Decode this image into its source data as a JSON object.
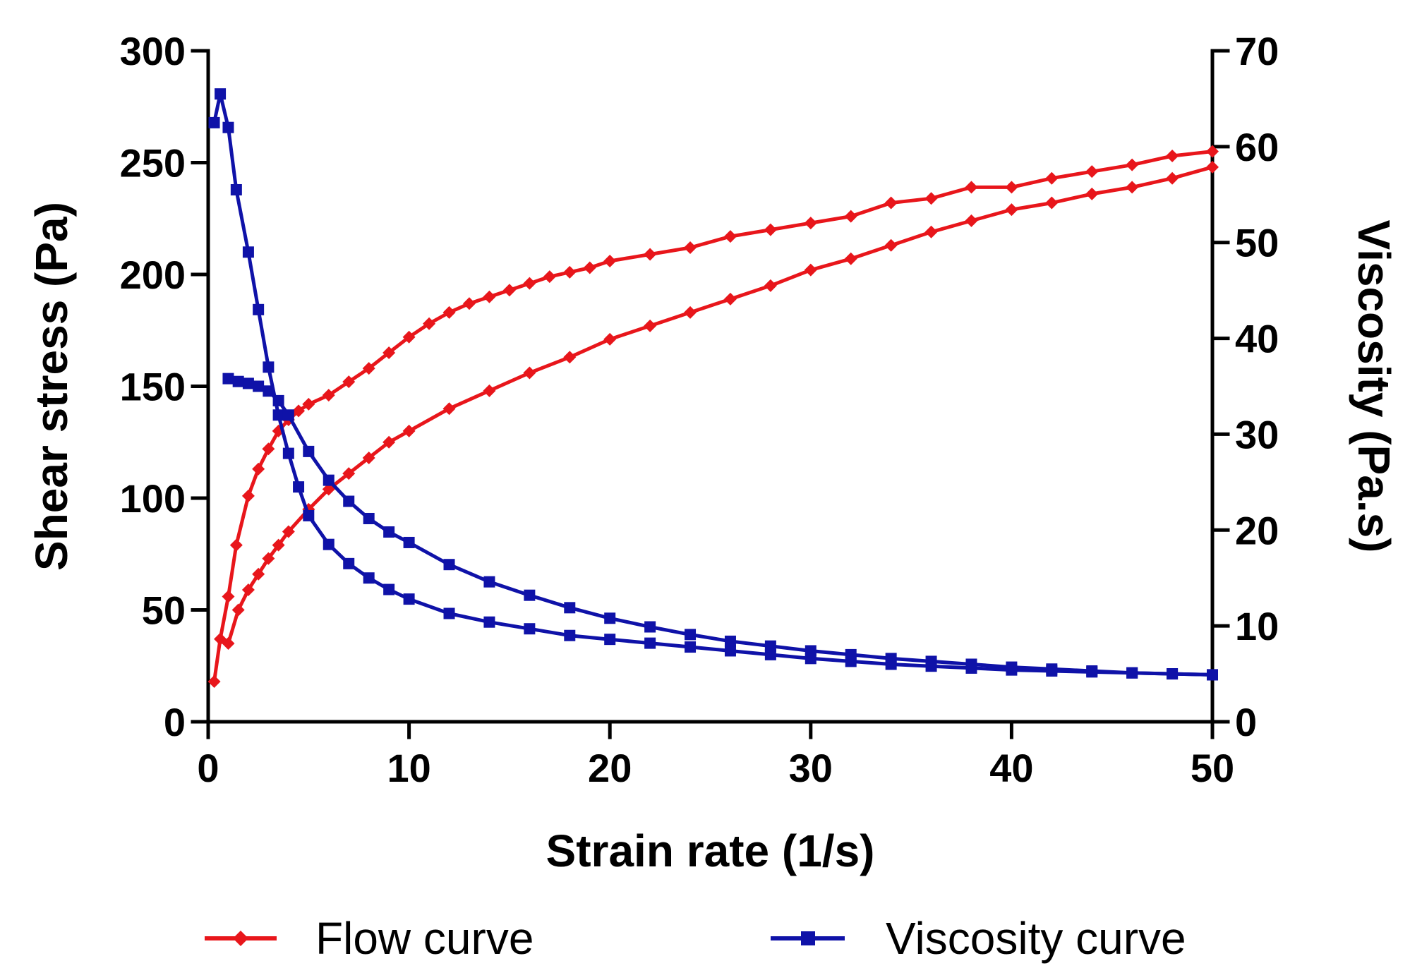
{
  "chart_data": {
    "type": "line",
    "xlabel": "Strain rate (1/s)",
    "ylabel": "Shear stress (Pa)",
    "y2label": "Viscosity (Pa.s)",
    "xlim": [
      0,
      50
    ],
    "ylim": [
      0,
      300
    ],
    "y2lim": [
      0,
      70
    ],
    "xticks": [
      "0",
      "10",
      "20",
      "30",
      "40",
      "50"
    ],
    "yticks": [
      "0",
      "50",
      "100",
      "150",
      "200",
      "250",
      "300"
    ],
    "y2ticks": [
      "0",
      "10",
      "20",
      "30",
      "40",
      "50",
      "60",
      "70"
    ],
    "grid": false,
    "legend_position": "bottom",
    "series": [
      {
        "name": "Flow curve",
        "axis": "left",
        "color": "#e8161b",
        "marker": "diamond",
        "branches": [
          {
            "label": "up",
            "x": [
              0.3,
              0.6,
              1.0,
              1.4,
              2.0,
              2.5,
              3.0,
              3.5,
              4.0,
              4.5,
              5.0,
              6.0,
              7.0,
              8.0,
              9.0,
              10.0,
              11.0,
              12.0,
              13.0,
              14.0,
              15.0,
              16.0,
              17.0,
              18.0,
              19.0,
              20.0,
              22.0,
              24.0,
              26.0,
              28.0,
              30.0,
              32.0,
              34.0,
              36.0,
              38.0,
              40.0,
              42.0,
              44.0,
              46.0,
              48.0,
              50.0
            ],
            "y": [
              18,
              37,
              56,
              79,
              101,
              113,
              122,
              130,
              135,
              139,
              142,
              146,
              152,
              158,
              165,
              172,
              178,
              183,
              187,
              190,
              193,
              196,
              199,
              201,
              203,
              206,
              209,
              212,
              217,
              220,
              223,
              226,
              232,
              234,
              239,
              239,
              243,
              246,
              249,
              253,
              255
            ]
          },
          {
            "label": "down",
            "x": [
              50.0,
              48.0,
              46.0,
              44.0,
              42.0,
              40.0,
              38.0,
              36.0,
              34.0,
              32.0,
              30.0,
              28.0,
              26.0,
              24.0,
              22.0,
              20.0,
              18.0,
              16.0,
              14.0,
              12.0,
              10.0,
              9.0,
              8.0,
              7.0,
              6.0,
              5.0,
              4.0,
              3.5,
              3.0,
              2.5,
              2.0,
              1.5,
              1.0
            ],
            "y": [
              248,
              243,
              239,
              236,
              232,
              229,
              224,
              219,
              213,
              207,
              202,
              195,
              189,
              183,
              177,
              171,
              163,
              156,
              148,
              140,
              130,
              125,
              118,
              111,
              104,
              95,
              85,
              79,
              73,
              66,
              59,
              50,
              35
            ]
          }
        ]
      },
      {
        "name": "Viscosity curve",
        "axis": "right",
        "color": "#0f12a8",
        "marker": "square",
        "branches": [
          {
            "label": "up",
            "x": [
              0.3,
              0.6,
              1.0,
              1.4,
              2.0,
              2.5,
              3.0,
              3.5,
              4.0,
              4.5,
              5.0,
              6.0,
              7.0,
              8.0,
              9.0,
              10.0,
              12.0,
              14.0,
              16.0,
              18.0,
              20.0,
              22.0,
              24.0,
              26.0,
              28.0,
              30.0,
              32.0,
              34.0,
              36.0,
              38.0,
              40.0,
              42.0,
              44.0,
              46.0,
              48.0,
              50.0
            ],
            "y": [
              62.5,
              65.5,
              62.0,
              55.5,
              49.0,
              43.0,
              37.0,
              32.0,
              28.0,
              24.5,
              21.5,
              18.5,
              16.5,
              15.0,
              13.8,
              12.8,
              11.3,
              10.4,
              9.7,
              9.0,
              8.6,
              8.2,
              7.8,
              7.4,
              7.0,
              6.6,
              6.3,
              6.0,
              5.8,
              5.6,
              5.4,
              5.3,
              5.2,
              5.1,
              5.0,
              4.9
            ]
          },
          {
            "label": "down",
            "x": [
              50.0,
              48.0,
              46.0,
              44.0,
              42.0,
              40.0,
              38.0,
              36.0,
              34.0,
              32.0,
              30.0,
              28.0,
              26.0,
              24.0,
              22.0,
              20.0,
              18.0,
              16.0,
              14.0,
              12.0,
              10.0,
              9.0,
              8.0,
              7.0,
              6.0,
              5.0,
              4.0,
              3.5,
              3.0,
              2.5,
              2.0,
              1.5,
              1.0
            ],
            "y": [
              4.9,
              5.0,
              5.1,
              5.3,
              5.5,
              5.7,
              6.0,
              6.3,
              6.6,
              7.0,
              7.4,
              7.9,
              8.4,
              9.1,
              9.9,
              10.8,
              11.9,
              13.2,
              14.6,
              16.4,
              18.7,
              19.8,
              21.2,
              23.0,
              25.2,
              28.2,
              32.0,
              33.5,
              34.5,
              35.0,
              35.3,
              35.5,
              35.8
            ]
          }
        ]
      }
    ]
  }
}
